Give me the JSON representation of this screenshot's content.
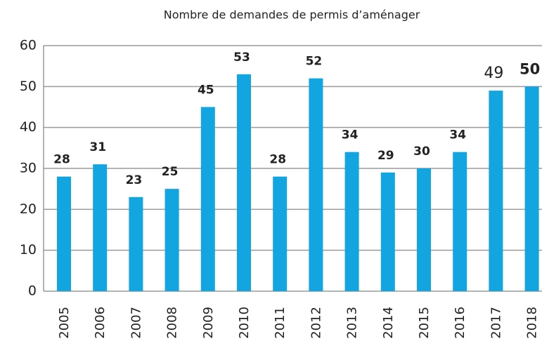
{
  "chart_data": {
    "type": "bar",
    "title": "Nombre de demandes de permis d’aménager",
    "categories": [
      "2005",
      "2006",
      "2007",
      "2008",
      "2009",
      "2010",
      "2011",
      "2012",
      "2013",
      "2014",
      "2015",
      "2016",
      "2017",
      "2018"
    ],
    "values": [
      28,
      31,
      23,
      25,
      45,
      53,
      28,
      52,
      34,
      29,
      30,
      34,
      49,
      50
    ],
    "color": "#13a5df",
    "ylim": [
      0,
      60
    ],
    "yticks": [
      0,
      10,
      20,
      30,
      40,
      50,
      60
    ],
    "grid": true
  }
}
